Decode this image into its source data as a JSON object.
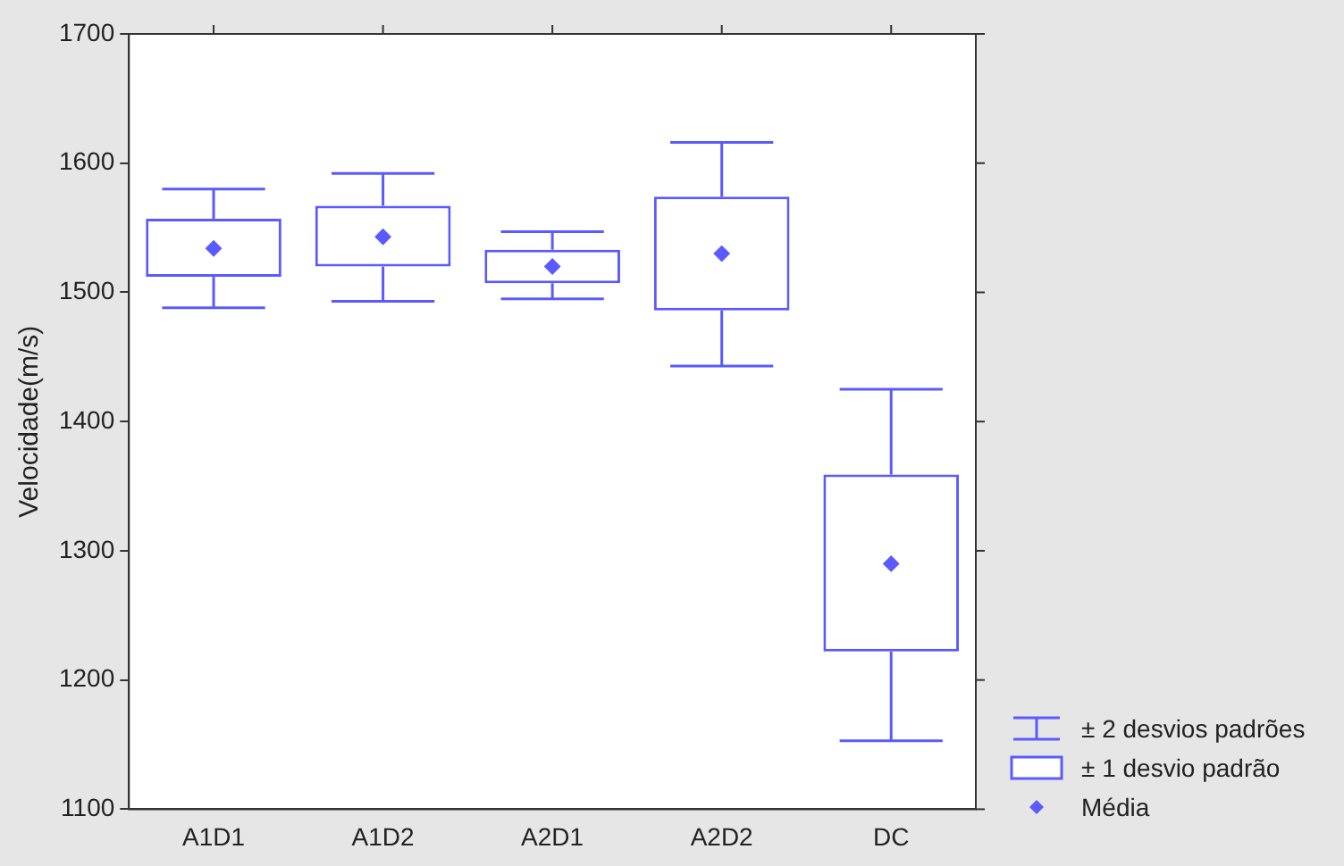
{
  "chart_data": {
    "type": "box",
    "ylabel": "Velocidade(m/s)",
    "categories": [
      "A1D1",
      "A1D2",
      "A2D1",
      "A2D2",
      "DC"
    ],
    "boxes": [
      {
        "low": 1488,
        "q1": 1512,
        "q3": 1557,
        "high": 1580,
        "mean": 1534
      },
      {
        "low": 1493,
        "q1": 1520,
        "q3": 1567,
        "high": 1592,
        "mean": 1543
      },
      {
        "low": 1495,
        "q1": 1507,
        "q3": 1533,
        "high": 1547,
        "mean": 1520
      },
      {
        "low": 1443,
        "q1": 1486,
        "q3": 1574,
        "high": 1616,
        "mean": 1530
      },
      {
        "low": 1153,
        "q1": 1222,
        "q3": 1359,
        "high": 1425,
        "mean": 1290
      }
    ],
    "color": "#5a5aff",
    "ylim": [
      1100,
      1700
    ],
    "yticks": [
      1100,
      1200,
      1300,
      1400,
      1500,
      1600,
      1700
    ],
    "grid": false,
    "marker": "diamond",
    "annotations": [
      "± 2 desvios padrões",
      "± 1 desvio padrão",
      "Média"
    ]
  }
}
